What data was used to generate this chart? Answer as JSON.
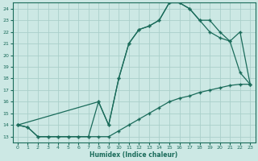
{
  "xlabel": "Humidex (Indice chaleur)",
  "bg_color": "#cce8e4",
  "grid_color": "#aacfca",
  "line_color": "#1a6b5a",
  "xlim": [
    -0.5,
    23.5
  ],
  "ylim": [
    12.5,
    24.5
  ],
  "xticks": [
    0,
    1,
    2,
    3,
    4,
    5,
    6,
    7,
    8,
    9,
    10,
    11,
    12,
    13,
    14,
    15,
    16,
    17,
    18,
    19,
    20,
    21,
    22,
    23
  ],
  "yticks": [
    13,
    14,
    15,
    16,
    17,
    18,
    19,
    20,
    21,
    22,
    23,
    24
  ],
  "line1_x": [
    0,
    1,
    2,
    3,
    4,
    5,
    6,
    7,
    8,
    9,
    10,
    11,
    12,
    13,
    14,
    15,
    16,
    17,
    18,
    19,
    20,
    21,
    22,
    23
  ],
  "line1_y": [
    14,
    13.8,
    13,
    13,
    13,
    13,
    13,
    13,
    13,
    13,
    13.5,
    14,
    14.5,
    15,
    15.5,
    16,
    16.3,
    16.5,
    16.8,
    17,
    17.2,
    17.4,
    17.5,
    17.5
  ],
  "line2_x": [
    0,
    1,
    2,
    3,
    4,
    5,
    6,
    7,
    8,
    9,
    10,
    11,
    12,
    13,
    14,
    15,
    16,
    17,
    18,
    19,
    20,
    21,
    22,
    23
  ],
  "line2_y": [
    14,
    13.8,
    13,
    13,
    13,
    13,
    13,
    13,
    16,
    14,
    18,
    21,
    22.2,
    22.5,
    23,
    24.5,
    24.5,
    24,
    23,
    22,
    21.5,
    21.2,
    18.5,
    17.5
  ],
  "line3_x": [
    0,
    8,
    9,
    10,
    11,
    12,
    13,
    14,
    15,
    16,
    17,
    18,
    19,
    20,
    21,
    22,
    23
  ],
  "line3_y": [
    14,
    16,
    14,
    18,
    21,
    22.2,
    22.5,
    23,
    24.5,
    24.5,
    24,
    23,
    23,
    22,
    21.2,
    22,
    17.5
  ]
}
